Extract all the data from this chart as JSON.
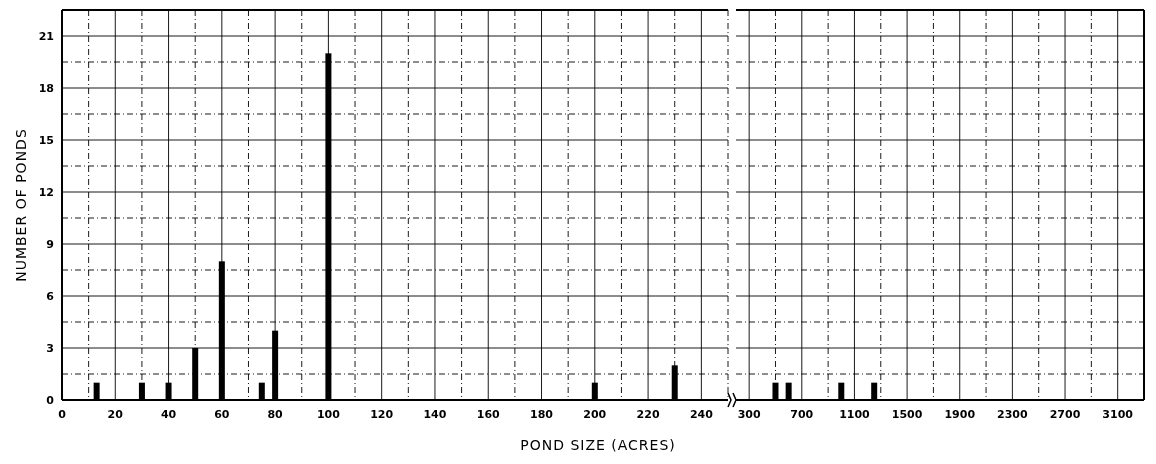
{
  "chart_data": [
    {
      "type": "bar",
      "xlabel": "POND SIZE (ACRES)",
      "ylabel": "NUMBER OF PONDS",
      "x": [
        13,
        30,
        40,
        50,
        60,
        75,
        80,
        100,
        200,
        230
      ],
      "values": [
        1,
        1,
        1,
        3,
        8,
        1,
        4,
        20,
        1,
        2
      ],
      "color": "#000000",
      "xlim": [
        0,
        250
      ],
      "xticks": [
        0,
        20,
        40,
        60,
        80,
        100,
        120,
        140,
        160,
        180,
        200,
        220,
        240
      ],
      "ylim": [
        0,
        22.5
      ],
      "yticks": [
        0,
        3,
        6,
        9,
        12,
        15,
        18,
        21
      ],
      "grid": true
    },
    {
      "type": "bar",
      "x": [
        500,
        600,
        1000,
        1250
      ],
      "values": [
        1,
        1,
        1,
        1
      ],
      "color": "#000000",
      "xlim": [
        200,
        3300
      ],
      "xticks": [
        300,
        700,
        1100,
        1500,
        1900,
        2300,
        2700,
        3100
      ],
      "ylim": [
        0,
        22.5
      ],
      "yticks": [
        0,
        3,
        6,
        9,
        12,
        15,
        18,
        21
      ],
      "tick_labels": "x",
      "grid": true
    }
  ]
}
